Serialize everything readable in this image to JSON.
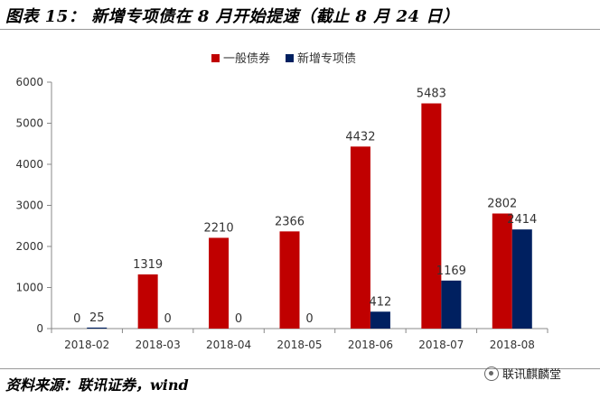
{
  "header": {
    "title": "图表 15： 新增专项债在 8 月开始提速（截止 8 月 24 日）"
  },
  "footer": {
    "source": "资料来源：联讯证券，wind",
    "watermark": "联讯麒麟堂"
  },
  "colors": {
    "general_bond": "#c00000",
    "special_bond": "#002060"
  },
  "chart_data": {
    "type": "bar",
    "title": "",
    "xlabel": "",
    "ylabel": "",
    "ylim": [
      0,
      6000
    ],
    "yticks": [
      0,
      1000,
      2000,
      3000,
      4000,
      5000,
      6000
    ],
    "grid": false,
    "legend_position": "top",
    "categories": [
      "2018-02",
      "2018-03",
      "2018-04",
      "2018-05",
      "2018-06",
      "2018-07",
      "2018-08"
    ],
    "series": [
      {
        "name": "一般债券",
        "values": [
          0,
          1319,
          2210,
          2366,
          4432,
          5483,
          2802
        ]
      },
      {
        "name": "新增专项债",
        "values": [
          25,
          0,
          0,
          0,
          412,
          1169,
          2414
        ]
      }
    ]
  }
}
